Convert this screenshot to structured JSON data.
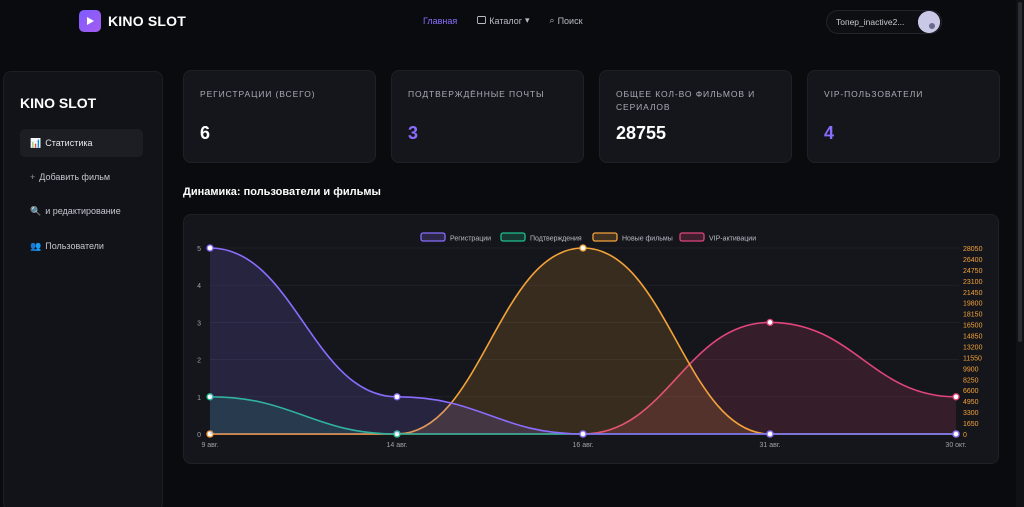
{
  "brand": {
    "name": "KINO SLOT"
  },
  "nav": {
    "home": "Главная",
    "catalog": "Каталог",
    "search": "Поиск"
  },
  "user": {
    "name": "Toпep_inactive2..."
  },
  "sidebar": {
    "title": "KINO SLOT",
    "items": [
      {
        "label": "Статистика",
        "icon": "📊"
      },
      {
        "label": "Добавить фильм",
        "icon": "+"
      },
      {
        "label": "и редактирование",
        "icon": "🔍"
      },
      {
        "label": "Пользователи",
        "icon": "👥"
      }
    ]
  },
  "cards": [
    {
      "label": "Регистрации (всего)",
      "value": "6"
    },
    {
      "label": "Подтверждённые почты",
      "value": "3"
    },
    {
      "label": "Общее кол-во фильмов и сериалов",
      "value": "28755"
    },
    {
      "label": "VIP-пользователи",
      "value": "4"
    }
  ],
  "section": {
    "title": "Динамика: пользователи и фильмы"
  },
  "colors": {
    "accent": "#8a6dff",
    "registrations": "#8a6dff",
    "confirmations": "#1fbf8f",
    "films": "#f2a23a",
    "vip": "#e0457b"
  },
  "chart_data": {
    "type": "line",
    "title": "",
    "x": [
      "9 авг.",
      "14 авг.",
      "16 авг.",
      "31 авг.",
      "30 окт."
    ],
    "legend": [
      "Регистрации",
      "Подтверждения",
      "Новые фильмы",
      "VIP-активации"
    ],
    "y_left_ticks": [
      "0",
      "1",
      "2",
      "3",
      "4",
      "5"
    ],
    "y_right_ticks": [
      "0",
      "1650",
      "3300",
      "4950",
      "6600",
      "8250",
      "9900",
      "11550",
      "13200",
      "14850",
      "16500",
      "18150",
      "19800",
      "21450",
      "23100",
      "24750",
      "26400",
      "28050"
    ],
    "ylim_left": [
      0,
      5
    ],
    "ylim_right": [
      0,
      28050
    ],
    "series": [
      {
        "name": "Регистрации",
        "axis": "left",
        "color": "#8a6dff",
        "values": [
          5,
          1,
          0,
          0,
          0
        ]
      },
      {
        "name": "Подтверждения",
        "axis": "left",
        "color": "#1fbf8f",
        "values": [
          1,
          0,
          0,
          0,
          0
        ]
      },
      {
        "name": "Новые фильмы",
        "axis": "right",
        "color": "#f2a23a",
        "values": [
          0,
          0,
          28050,
          0,
          0
        ]
      },
      {
        "name": "VIP-активации",
        "axis": "left",
        "color": "#e0457b",
        "values": [
          0,
          0,
          0,
          3,
          1
        ]
      }
    ]
  }
}
